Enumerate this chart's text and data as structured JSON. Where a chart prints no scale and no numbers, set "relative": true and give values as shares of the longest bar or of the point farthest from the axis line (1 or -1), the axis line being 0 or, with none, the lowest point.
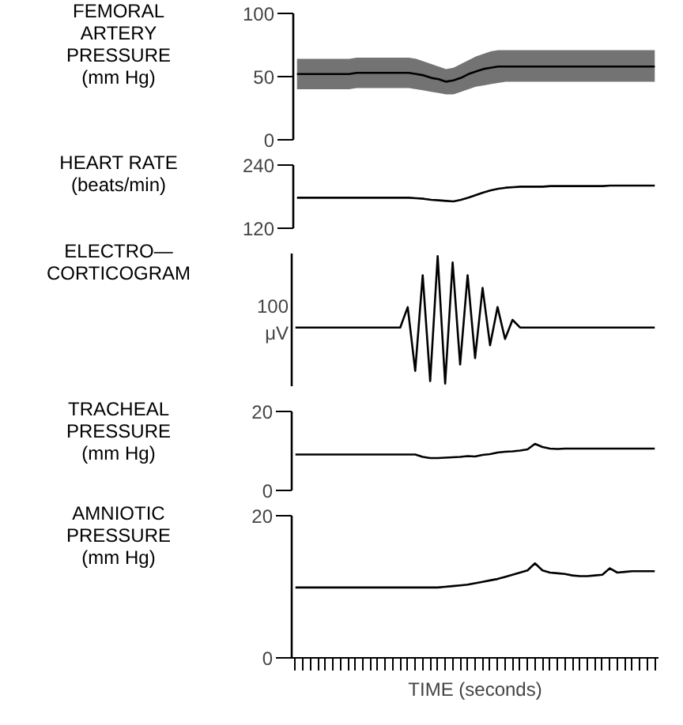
{
  "chart_data": [
    {
      "type": "line",
      "title": "FEMORAL\nARTERY\nPRESSURE\n(mm Hg)",
      "categories": [
        null,
        null,
        null,
        null,
        null,
        null,
        null,
        null,
        null,
        null,
        null,
        null,
        null,
        null,
        null,
        null,
        null,
        null,
        null,
        null,
        null,
        null,
        null,
        null,
        null,
        null,
        null,
        null,
        null,
        null,
        null,
        null,
        null,
        null,
        null,
        null,
        null,
        null,
        null,
        null,
        null,
        null,
        null,
        null,
        null,
        null,
        null,
        null,
        null
      ],
      "series": [
        {
          "color": "#000000",
          "values": [
            52,
            52,
            52,
            52,
            52,
            52,
            52,
            52,
            53,
            53,
            53,
            53,
            53,
            53,
            53,
            53,
            52,
            51,
            49,
            48,
            46,
            47,
            49,
            52,
            54,
            56,
            57,
            58,
            58,
            58,
            58,
            58,
            58,
            58,
            58,
            58,
            58,
            58,
            58,
            58,
            58,
            58,
            58,
            58,
            58,
            58,
            58,
            58,
            58
          ],
          "lower": [
            40,
            40,
            40,
            40,
            40,
            40,
            40,
            40,
            41,
            41,
            41,
            41,
            41,
            41,
            41,
            41,
            40,
            39,
            38,
            37,
            36,
            36,
            38,
            40,
            42,
            43,
            44,
            45,
            46,
            46,
            46,
            46,
            46,
            46,
            46,
            46,
            46,
            46,
            46,
            46,
            46,
            46,
            46,
            46,
            46,
            46,
            46,
            46,
            46
          ],
          "upper": [
            64,
            64,
            64,
            64,
            64,
            64,
            64,
            64,
            65,
            65,
            65,
            65,
            65,
            65,
            65,
            65,
            64,
            62,
            60,
            58,
            56,
            57,
            60,
            63,
            66,
            68,
            70,
            71,
            71,
            71,
            71,
            71,
            71,
            71,
            71,
            71,
            71,
            71,
            71,
            71,
            71,
            71,
            71,
            71,
            71,
            71,
            71,
            71,
            71
          ]
        }
      ],
      "ylim": [
        0,
        100
      ],
      "yticks": [
        0,
        50,
        100
      ],
      "tick_labels": "y",
      "grid": false,
      "marker": "none"
    },
    {
      "type": "line",
      "title": "HEART RATE\n(beats/min)",
      "categories": [
        null,
        null,
        null,
        null,
        null,
        null,
        null,
        null,
        null,
        null,
        null,
        null,
        null,
        null,
        null,
        null,
        null,
        null,
        null,
        null,
        null,
        null,
        null,
        null,
        null,
        null,
        null,
        null,
        null,
        null,
        null,
        null,
        null,
        null,
        null,
        null,
        null,
        null,
        null,
        null,
        null,
        null,
        null,
        null,
        null,
        null,
        null,
        null,
        null
      ],
      "series": [
        {
          "color": "#000000",
          "values": [
            178,
            178,
            178,
            178,
            178,
            178,
            178,
            178,
            178,
            178,
            178,
            178,
            178,
            178,
            178,
            178,
            177,
            176,
            174,
            173,
            172,
            171,
            174,
            178,
            183,
            188,
            192,
            195,
            197,
            198,
            199,
            199,
            199,
            199,
            200,
            200,
            200,
            200,
            200,
            200,
            200,
            200,
            201,
            201,
            201,
            201,
            201,
            201,
            201
          ]
        }
      ],
      "ylim": [
        120,
        240
      ],
      "yticks": [
        120,
        240
      ],
      "tick_labels": "y",
      "grid": false,
      "marker": "none"
    },
    {
      "type": "line",
      "title": "ELECTRO—\nCORTICOGRAM",
      "ylabel": "100\nμV",
      "relative": true,
      "categories": [
        null,
        null,
        null,
        null,
        null,
        null,
        null,
        null,
        null,
        null,
        null,
        null,
        null,
        null,
        null,
        null,
        null,
        null,
        null,
        null,
        null,
        null,
        null,
        null,
        null,
        null,
        null,
        null,
        null,
        null,
        null,
        null,
        null,
        null,
        null,
        null,
        null,
        null,
        null,
        null,
        null,
        null,
        null,
        null,
        null,
        null,
        null,
        null,
        null
      ],
      "series": [
        {
          "color": "#000000",
          "values": [
            0.44,
            0.44,
            0.44,
            0.44,
            0.44,
            0.44,
            0.44,
            0.44,
            0.44,
            0.44,
            0.44,
            0.44,
            0.44,
            0.44,
            0.44,
            0.6,
            0.1,
            0.85,
            0.02,
            1.0,
            0.0,
            0.95,
            0.15,
            0.85,
            0.2,
            0.75,
            0.3,
            0.6,
            0.35,
            0.5,
            0.44,
            0.44,
            0.44,
            0.44,
            0.44,
            0.44,
            0.44,
            0.44,
            0.44,
            0.44,
            0.44,
            0.44,
            0.44,
            0.44,
            0.44,
            0.44,
            0.44,
            0.44,
            0.44
          ]
        }
      ],
      "tick_labels": false,
      "grid": false,
      "marker": "none"
    },
    {
      "type": "line",
      "title": "TRACHEAL\nPRESSURE\n(mm Hg)",
      "categories": [
        null,
        null,
        null,
        null,
        null,
        null,
        null,
        null,
        null,
        null,
        null,
        null,
        null,
        null,
        null,
        null,
        null,
        null,
        null,
        null,
        null,
        null,
        null,
        null,
        null,
        null,
        null,
        null,
        null,
        null,
        null,
        null,
        null,
        null,
        null,
        null,
        null,
        null,
        null,
        null,
        null,
        null,
        null,
        null,
        null,
        null,
        null,
        null,
        null
      ],
      "series": [
        {
          "color": "#000000",
          "values": [
            9.1,
            9.1,
            9.1,
            9.1,
            9.1,
            9.1,
            9.1,
            9.1,
            9.1,
            9.1,
            9.1,
            9.1,
            9.1,
            9.1,
            9.1,
            9.1,
            9.1,
            8.5,
            8.2,
            8.2,
            8.3,
            8.4,
            8.5,
            8.7,
            8.6,
            9.0,
            9.2,
            9.6,
            9.8,
            9.9,
            10.1,
            10.4,
            11.8,
            11.0,
            10.6,
            10.5,
            10.6,
            10.6,
            10.6,
            10.6,
            10.6,
            10.6,
            10.6,
            10.6,
            10.6,
            10.6,
            10.6,
            10.6,
            10.6
          ]
        }
      ],
      "ylim": [
        0,
        20
      ],
      "yticks": [
        0,
        20
      ],
      "tick_labels": "y",
      "grid": false,
      "marker": "none"
    },
    {
      "type": "line",
      "title": "AMNIOTIC\nPRESSURE\n(mm Hg)",
      "xlabel": "TIME (seconds)",
      "categories": [
        null,
        null,
        null,
        null,
        null,
        null,
        null,
        null,
        null,
        null,
        null,
        null,
        null,
        null,
        null,
        null,
        null,
        null,
        null,
        null,
        null,
        null,
        null,
        null,
        null,
        null,
        null,
        null,
        null,
        null,
        null,
        null,
        null,
        null,
        null,
        null,
        null,
        null,
        null,
        null,
        null,
        null,
        null,
        null,
        null,
        null,
        null,
        null,
        null
      ],
      "series": [
        {
          "color": "#000000",
          "values": [
            9.9,
            9.9,
            9.9,
            9.9,
            9.9,
            9.9,
            9.9,
            9.9,
            9.9,
            9.9,
            9.9,
            9.9,
            9.9,
            9.9,
            9.9,
            9.9,
            9.9,
            9.9,
            9.9,
            9.9,
            10.0,
            10.1,
            10.2,
            10.3,
            10.5,
            10.7,
            10.9,
            11.1,
            11.4,
            11.7,
            12.0,
            12.3,
            13.3,
            12.3,
            12.0,
            11.9,
            11.8,
            11.6,
            11.5,
            11.5,
            11.6,
            11.7,
            12.6,
            12.0,
            12.1,
            12.2,
            12.2,
            12.2,
            12.2
          ]
        }
      ],
      "ylim": [
        0,
        20
      ],
      "yticks": [
        0,
        20
      ],
      "tick_labels": "y",
      "grid": false,
      "marker": "none"
    }
  ]
}
